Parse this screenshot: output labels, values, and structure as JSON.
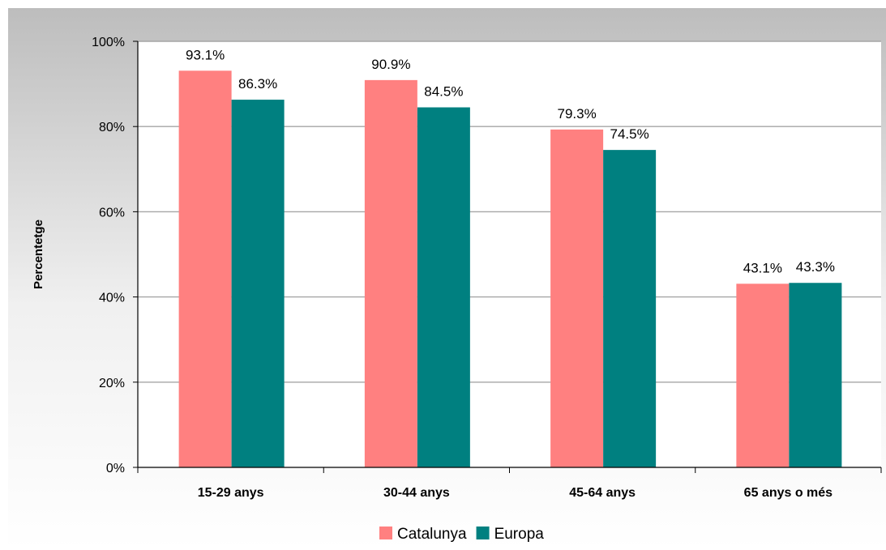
{
  "chart_data": {
    "type": "bar",
    "title": "",
    "xlabel": "",
    "ylabel": "Percentetge",
    "ylim": [
      0,
      100
    ],
    "yticks": [
      0,
      20,
      40,
      60,
      80,
      100
    ],
    "ytick_labels": [
      "0%",
      "20%",
      "40%",
      "60%",
      "80%",
      "100%"
    ],
    "categories": [
      "15-29 anys",
      "30-44 anys",
      "45-64 anys",
      "65 anys o més"
    ],
    "series": [
      {
        "name": "Catalunya",
        "color": "#ff8080",
        "values": [
          93.1,
          90.9,
          79.3,
          43.1
        ],
        "data_labels": [
          "93.1%",
          "90.9%",
          "79.3%",
          "43.1%"
        ]
      },
      {
        "name": "Europa",
        "color": "#008080",
        "values": [
          86.3,
          84.5,
          74.5,
          43.3
        ],
        "data_labels": [
          "86.3%",
          "84.5%",
          "74.5%",
          "43.3%"
        ]
      }
    ],
    "grid": true,
    "legend_position": "bottom",
    "plot_background": "#ffffff",
    "page_background": "#c0c0c0"
  }
}
